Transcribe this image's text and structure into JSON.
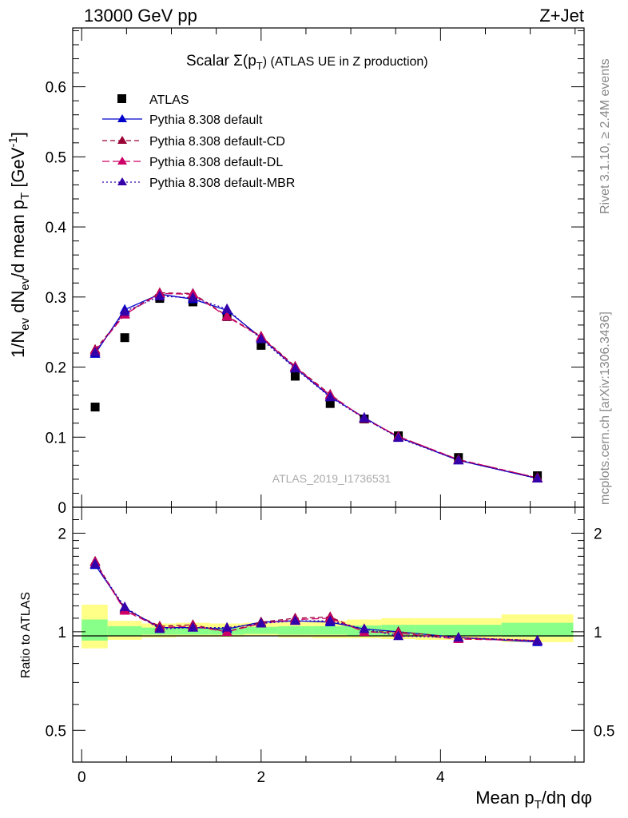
{
  "header": {
    "left": "13000 GeV pp",
    "right": "Z+Jet"
  },
  "side_labels": {
    "rivet": "Rivet 3.1.10, ≥ 2.4M events",
    "mcplots": "mcplots.cern.ch [arXiv:1306.3436]"
  },
  "watermark": "ATLAS_2019_I1736531",
  "chart_data": [
    {
      "type": "scatter",
      "panel": "main",
      "title_main": "Scalar Σ(p",
      "title_sub": "T",
      "title_end": ") (ATLAS UE in Z production)",
      "ylabel_parts": [
        "1/N",
        "ev",
        " dN",
        "ev",
        "/d mean p",
        "T",
        " [GeV",
        "-1",
        "]"
      ],
      "ylim": [
        0,
        0.7
      ],
      "xlim": [
        -0.1,
        5.6
      ],
      "yticks": [
        {
          "v": 0,
          "label": "0"
        },
        {
          "v": 0.1,
          "label": "0.1"
        },
        {
          "v": 0.2,
          "label": "0.2"
        },
        {
          "v": 0.3,
          "label": "0.3"
        },
        {
          "v": 0.4,
          "label": "0.4"
        },
        {
          "v": 0.5,
          "label": "0.5"
        },
        {
          "v": 0.6,
          "label": "0.6"
        }
      ],
      "legend_placement": "top-left",
      "x": [
        0.15,
        0.48,
        0.87,
        1.24,
        1.62,
        2.0,
        2.38,
        2.77,
        3.15,
        3.53,
        4.2,
        5.08
      ],
      "series": [
        {
          "name": "ATLAS",
          "marker": "square",
          "color": "#000000",
          "dash": "none",
          "values": [
            0.143,
            0.242,
            0.298,
            0.293,
            0.272,
            0.231,
            0.187,
            0.148,
            0.126,
            0.102,
            0.071,
            0.045
          ]
        },
        {
          "name": "Pythia 8.308 default",
          "marker": "triangle",
          "color": "#0000cc",
          "dash": "solid",
          "values": [
            0.219,
            0.282,
            0.304,
            0.297,
            0.281,
            0.242,
            0.199,
            0.158,
            0.128,
            0.1,
            0.067,
            0.041
          ]
        },
        {
          "name": "Pythia 8.308 default-CD",
          "marker": "triangle",
          "color": "#990033",
          "dash": "6,4",
          "values": [
            0.225,
            0.276,
            0.306,
            0.305,
            0.273,
            0.244,
            0.201,
            0.161,
            0.126,
            0.101,
            0.068,
            0.042
          ]
        },
        {
          "name": "Pythia 8.308 default-DL",
          "marker": "triangle",
          "color": "#cc0066",
          "dash": "9,4",
          "values": [
            0.223,
            0.275,
            0.305,
            0.304,
            0.272,
            0.243,
            0.2,
            0.16,
            0.127,
            0.101,
            0.068,
            0.042
          ]
        },
        {
          "name": "Pythia 8.308 default-MBR",
          "marker": "triangle",
          "color": "#3300aa",
          "dash": "2,3",
          "values": [
            0.221,
            0.279,
            0.301,
            0.299,
            0.283,
            0.24,
            0.198,
            0.157,
            0.127,
            0.099,
            0.067,
            0.041
          ]
        }
      ]
    },
    {
      "type": "scatter",
      "panel": "ratio",
      "ylabel": "Ratio to ATLAS",
      "xlabel_parts": [
        "Mean p",
        "T",
        "/dη dφ"
      ],
      "ylim_log": [
        0.4,
        2.4
      ],
      "xlim": [
        -0.1,
        5.6
      ],
      "yticks": [
        {
          "v": 0.5,
          "label": "0.5"
        },
        {
          "v": 1,
          "label": "1"
        },
        {
          "v": 2,
          "label": "2"
        }
      ],
      "xticks": [
        {
          "v": 0,
          "label": "0"
        },
        {
          "v": 2,
          "label": "2"
        },
        {
          "v": 4,
          "label": "4"
        }
      ],
      "bands": [
        {
          "x0": 0.0,
          "x1": 0.29,
          "yellow": [
            0.89,
            1.21
          ],
          "green": [
            0.94,
            1.09
          ]
        },
        {
          "x0": 0.29,
          "x1": 0.67,
          "yellow": [
            0.945,
            1.08
          ],
          "green": [
            0.97,
            1.04
          ]
        },
        {
          "x0": 0.67,
          "x1": 1.05,
          "yellow": [
            0.96,
            1.06
          ],
          "green": [
            0.98,
            1.03
          ]
        },
        {
          "x0": 1.05,
          "x1": 1.43,
          "yellow": [
            0.965,
            1.065
          ],
          "green": [
            0.98,
            1.03
          ]
        },
        {
          "x0": 1.43,
          "x1": 1.81,
          "yellow": [
            0.965,
            1.06
          ],
          "green": [
            0.98,
            1.03
          ]
        },
        {
          "x0": 1.81,
          "x1": 2.19,
          "yellow": [
            0.97,
            1.065
          ],
          "green": [
            0.985,
            1.035
          ]
        },
        {
          "x0": 2.19,
          "x1": 2.57,
          "yellow": [
            0.96,
            1.07
          ],
          "green": [
            0.98,
            1.04
          ]
        },
        {
          "x0": 2.57,
          "x1": 2.96,
          "yellow": [
            0.955,
            1.08
          ],
          "green": [
            0.98,
            1.04
          ]
        },
        {
          "x0": 2.96,
          "x1": 3.34,
          "yellow": [
            0.955,
            1.09
          ],
          "green": [
            0.975,
            1.045
          ]
        },
        {
          "x0": 3.34,
          "x1": 3.72,
          "yellow": [
            0.95,
            1.1
          ],
          "green": [
            0.975,
            1.05
          ]
        },
        {
          "x0": 3.72,
          "x1": 4.68,
          "yellow": [
            0.945,
            1.1
          ],
          "green": [
            0.97,
            1.05
          ]
        },
        {
          "x0": 4.68,
          "x1": 5.48,
          "yellow": [
            0.93,
            1.13
          ],
          "green": [
            0.965,
            1.065
          ]
        }
      ],
      "series": [
        {
          "name": "Pythia 8.308 default",
          "color": "#0000cc",
          "dash": "solid",
          "values": [
            1.6,
            1.18,
            1.03,
            1.03,
            1.02,
            1.07,
            1.08,
            1.07,
            1.02,
            1.0,
            0.96,
            0.93
          ]
        },
        {
          "name": "Pythia 8.308 default-CD",
          "color": "#990033",
          "dash": "6,4",
          "values": [
            1.64,
            1.17,
            1.04,
            1.05,
            1.0,
            1.07,
            1.1,
            1.11,
            1.0,
            1.0,
            0.96,
            0.94
          ]
        },
        {
          "name": "Pythia 8.308 default-DL",
          "color": "#cc0066",
          "dash": "9,4",
          "values": [
            1.63,
            1.16,
            1.03,
            1.04,
            1.0,
            1.06,
            1.09,
            1.1,
            1.0,
            0.99,
            0.95,
            0.94
          ]
        },
        {
          "name": "Pythia 8.308 default-MBR",
          "color": "#3300aa",
          "dash": "2,3",
          "values": [
            1.61,
            1.19,
            1.02,
            1.03,
            1.03,
            1.06,
            1.08,
            1.08,
            1.02,
            0.97,
            0.96,
            0.94
          ]
        }
      ]
    }
  ]
}
